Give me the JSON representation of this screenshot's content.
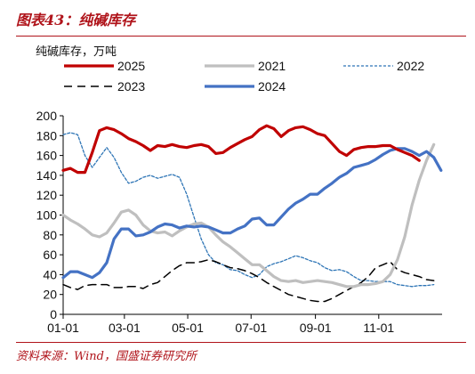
{
  "header": {
    "title": "图表43：纯碱库存"
  },
  "footer": {
    "source": "资料来源：Wind，国盛证券研究所"
  },
  "chart_data": {
    "type": "line",
    "title": "",
    "ylabel": "纯碱库存，万吨",
    "ylim": [
      0,
      200
    ],
    "yticks": [
      0,
      20,
      40,
      60,
      80,
      100,
      120,
      140,
      160,
      180,
      200
    ],
    "xlim": [
      0,
      365
    ],
    "xticks": [
      {
        "label": "01-01",
        "day": 0
      },
      {
        "label": "03-01",
        "day": 59
      },
      {
        "label": "05-01",
        "day": 120
      },
      {
        "label": "07-01",
        "day": 181
      },
      {
        "label": "09-01",
        "day": 243
      },
      {
        "label": "11-01",
        "day": 304
      }
    ],
    "legend_position": "top",
    "series": [
      {
        "name": "2025",
        "color": "#c00000",
        "style": "solid",
        "width": 3.2,
        "x": [
          0,
          7,
          14,
          21,
          28,
          35,
          42,
          49,
          56,
          63,
          70,
          77,
          84,
          91,
          98,
          105,
          112,
          119,
          126,
          133,
          140,
          147,
          154,
          161,
          168,
          175,
          182,
          189,
          196,
          203,
          210,
          217,
          224,
          231,
          238,
          245,
          252,
          259,
          266,
          273,
          280,
          287,
          294,
          301,
          308,
          315,
          322,
          329,
          336,
          343
        ],
        "y": [
          145,
          147,
          143,
          143,
          163,
          185,
          188,
          186,
          182,
          177,
          174,
          170,
          165,
          170,
          169,
          171,
          169,
          168,
          170,
          171,
          169,
          162,
          163,
          168,
          172,
          176,
          179,
          186,
          190,
          187,
          179,
          185,
          188,
          189,
          186,
          182,
          180,
          172,
          164,
          160,
          166,
          168,
          169,
          169,
          170,
          170,
          166,
          163,
          160,
          155
        ]
      },
      {
        "name": "2021",
        "color": "#bfbfbf",
        "style": "solid",
        "width": 3.2,
        "x": [
          0,
          7,
          14,
          21,
          28,
          35,
          42,
          49,
          56,
          63,
          70,
          77,
          84,
          91,
          98,
          105,
          112,
          119,
          126,
          133,
          140,
          147,
          154,
          161,
          168,
          175,
          182,
          189,
          196,
          203,
          210,
          217,
          224,
          231,
          238,
          245,
          252,
          259,
          266,
          273,
          280,
          287,
          294,
          301,
          308,
          315,
          322,
          329,
          336,
          343,
          350,
          357
        ],
        "y": [
          100,
          95,
          91,
          86,
          80,
          78,
          82,
          92,
          103,
          105,
          100,
          90,
          84,
          82,
          83,
          79,
          84,
          88,
          91,
          92,
          88,
          80,
          73,
          68,
          62,
          56,
          50,
          50,
          44,
          38,
          34,
          33,
          34,
          32,
          33,
          34,
          33,
          32,
          30,
          28,
          28,
          30,
          30,
          31,
          33,
          40,
          55,
          78,
          110,
          135,
          155,
          171
        ]
      },
      {
        "name": "2022",
        "color": "#2e75b6",
        "style": "dotted",
        "width": 1.3,
        "x": [
          0,
          7,
          14,
          21,
          28,
          35,
          42,
          49,
          56,
          63,
          70,
          77,
          84,
          91,
          98,
          105,
          112,
          119,
          126,
          133,
          140,
          147,
          154,
          161,
          168,
          175,
          182,
          189,
          196,
          203,
          210,
          217,
          224,
          231,
          238,
          245,
          252,
          259,
          266,
          273,
          280,
          287,
          294,
          301,
          308,
          315,
          322,
          329,
          336,
          343,
          350,
          357
        ],
        "y": [
          181,
          183,
          181,
          160,
          148,
          158,
          168,
          158,
          143,
          132,
          134,
          138,
          140,
          137,
          139,
          141,
          138,
          121,
          98,
          76,
          60,
          52,
          50,
          45,
          44,
          40,
          37,
          40,
          48,
          51,
          53,
          56,
          59,
          57,
          54,
          52,
          47,
          44,
          45,
          43,
          38,
          34,
          34,
          33,
          33,
          33,
          30,
          29,
          28,
          29,
          29,
          30
        ]
      },
      {
        "name": "2023",
        "color": "#000000",
        "style": "dashed",
        "width": 1.5,
        "x": [
          0,
          7,
          14,
          21,
          28,
          35,
          42,
          49,
          56,
          63,
          70,
          77,
          84,
          91,
          98,
          105,
          112,
          119,
          126,
          133,
          140,
          147,
          154,
          161,
          168,
          175,
          182,
          189,
          196,
          203,
          210,
          217,
          224,
          231,
          238,
          245,
          252,
          259,
          266,
          273,
          280,
          287,
          294,
          301,
          308,
          315,
          322,
          329,
          336,
          343,
          350,
          357
        ],
        "y": [
          30,
          27,
          25,
          29,
          30,
          30,
          30,
          27,
          27,
          28,
          28,
          26,
          30,
          32,
          38,
          44,
          49,
          52,
          52,
          53,
          55,
          53,
          50,
          47,
          46,
          44,
          41,
          37,
          32,
          28,
          24,
          20,
          18,
          16,
          14,
          13,
          13,
          16,
          20,
          24,
          28,
          32,
          38,
          47,
          50,
          53,
          45,
          42,
          40,
          38,
          35,
          34
        ]
      },
      {
        "name": "2024",
        "color": "#4472c4",
        "style": "solid",
        "width": 3.2,
        "x": [
          0,
          7,
          14,
          21,
          28,
          35,
          42,
          49,
          56,
          63,
          70,
          77,
          84,
          91,
          98,
          105,
          112,
          119,
          126,
          133,
          140,
          147,
          154,
          161,
          168,
          175,
          182,
          189,
          196,
          203,
          210,
          217,
          224,
          231,
          238,
          245,
          252,
          259,
          266,
          273,
          280,
          287,
          294,
          301,
          308,
          315,
          322,
          329,
          336,
          343,
          350,
          357,
          364
        ],
        "y": [
          37,
          43,
          43,
          40,
          37,
          42,
          52,
          76,
          86,
          86,
          79,
          80,
          83,
          88,
          91,
          90,
          87,
          89,
          88,
          89,
          88,
          85,
          82,
          82,
          86,
          89,
          96,
          97,
          90,
          90,
          98,
          106,
          112,
          116,
          121,
          121,
          127,
          132,
          138,
          142,
          148,
          150,
          152,
          156,
          161,
          165,
          167,
          167,
          164,
          160,
          164,
          158,
          145
        ]
      }
    ]
  }
}
